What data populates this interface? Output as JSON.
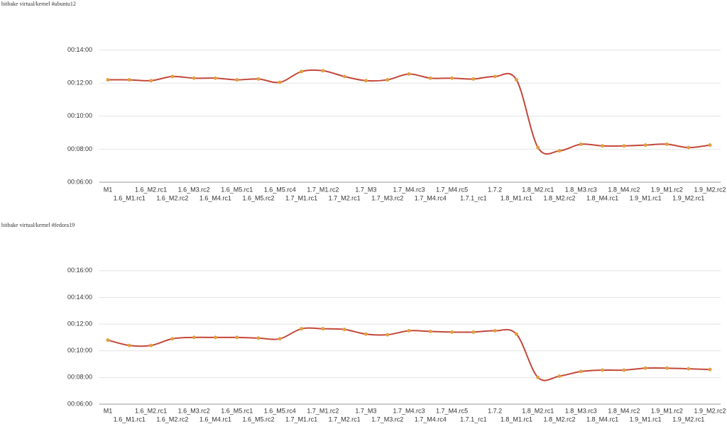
{
  "chart_data": [
    {
      "type": "line",
      "title": "bitbake virtual/kernel #ubuntu12",
      "categories": [
        "M1",
        "1.6_M1.rc1",
        "1.6_M2.rc1",
        "1.6_M2.rc2",
        "1.6_M3.rc2",
        "1.6_M4.rc1",
        "1.6_M5.rc1",
        "1.6_M5.rc2",
        "1.6_M5.rc4",
        "1.7_M1.rc1",
        "1.7_M1.rc2",
        "1.7_M2.rc1",
        "1.7_M3",
        "1.7_M3.rc2",
        "1.7_M4.rc3",
        "1.7_M4.rc4",
        "1.7_M4.rc5",
        "1.7.1_rc1",
        "1.7.2",
        "1.8_M1.rc1",
        "1.8_M2.rc1",
        "1.8_M2.rc2",
        "1.8_M3.rc3",
        "1.8_M4.rc1",
        "1.8_M4.rc2",
        "1.9_M1.rc1",
        "1.9_M1.rc2",
        "1.9_M2.rc1",
        "1.9_M2.rc2"
      ],
      "series": [
        {
          "color": "#c4473a",
          "marker_color": "#e0a040",
          "values": [
            12.2,
            12.2,
            12.15,
            12.4,
            12.3,
            12.3,
            12.2,
            12.25,
            12.05,
            12.7,
            12.75,
            12.4,
            12.15,
            12.2,
            12.55,
            12.3,
            12.3,
            12.25,
            12.4,
            12.2,
            8.1,
            7.9,
            8.3,
            8.2,
            8.2,
            8.25,
            8.3,
            8.1,
            8.25
          ]
        }
      ],
      "ylim": [
        6,
        14.8
      ],
      "yticks": [
        {
          "value": 6,
          "label": "00:06:00"
        },
        {
          "value": 8,
          "label": "00:08:00"
        },
        {
          "value": 10,
          "label": "00:10:00"
        },
        {
          "value": 12,
          "label": "00:12:00"
        },
        {
          "value": 14,
          "label": "00:14:00"
        }
      ],
      "grid": true
    },
    {
      "type": "line",
      "title": "bitbake virtual/kernel #fedora19",
      "categories": [
        "M1",
        "1.6_M1.rc1",
        "1.6_M2.rc1",
        "1.6_M2.rc2",
        "1.6_M3.rc2",
        "1.6_M4.rc1",
        "1.6_M5.rc1",
        "1.6_M5.rc2",
        "1.6_M5.rc4",
        "1.7_M1.rc1",
        "1.7_M1.rc2",
        "1.7_M2.rc1",
        "1.7_M3",
        "1.7_M3.rc2",
        "1.7_M4.rc3",
        "1.7_M4.rc4",
        "1.7_M4.rc5",
        "1.7.1_rc1",
        "1.7.2",
        "1.8_M1.rc1",
        "1.8_M2.rc1",
        "1.8_M2.rc2",
        "1.8_M3.rc3",
        "1.8_M4.rc1",
        "1.8_M4.rc2",
        "1.9_M1.rc1",
        "1.9_M1.rc2",
        "1.9_M2.rc1",
        "1.9_M2.rc2"
      ],
      "series": [
        {
          "color": "#c4473a",
          "marker_color": "#e0a040",
          "values": [
            10.8,
            10.4,
            10.4,
            10.9,
            11.0,
            11.0,
            11.0,
            10.95,
            10.9,
            11.65,
            11.65,
            11.6,
            11.25,
            11.2,
            11.5,
            11.45,
            11.4,
            11.4,
            11.5,
            11.25,
            8.0,
            8.1,
            8.45,
            8.55,
            8.55,
            8.7,
            8.7,
            8.65,
            8.6
          ]
        }
      ],
      "ylim": [
        6,
        17
      ],
      "yticks": [
        {
          "value": 6,
          "label": "00:06:00"
        },
        {
          "value": 8,
          "label": "00:08:00"
        },
        {
          "value": 10,
          "label": "00:10:00"
        },
        {
          "value": 12,
          "label": "00:12:00"
        },
        {
          "value": 14,
          "label": "00:14:00"
        },
        {
          "value": 16,
          "label": "00:16:00"
        }
      ],
      "grid": true
    }
  ]
}
